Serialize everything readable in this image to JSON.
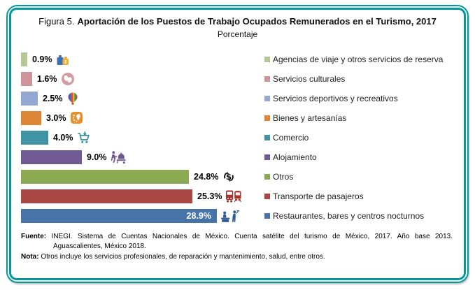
{
  "figure": {
    "label": "Figura 5.",
    "title": "Aportación de los Puestos de Trabajo Ocupados Remunerados en el Turismo, 2017",
    "subtitle": "Porcentaje"
  },
  "chart_data": {
    "type": "bar",
    "orientation": "horizontal",
    "unit": "percent",
    "title": "Aportación de los Puestos de Trabajo Ocupados Remunerados en el Turismo, 2017",
    "subtitle": "Porcentaje",
    "xlim": [
      0,
      30
    ],
    "grid": false,
    "legend_position": "right",
    "categories": [
      "Agencias de viaje y otros servicios de reserva",
      "Servicios culturales",
      "Servicios deportivos y recreativos",
      "Bienes y artesanías",
      "Comercio",
      "Alojamiento",
      "Otros",
      "Transporte de pasajeros",
      "Restaurantes, bares y centros nocturnos"
    ],
    "values": [
      0.9,
      1.6,
      2.5,
      3.0,
      4.0,
      9.0,
      24.8,
      25.3,
      28.9
    ],
    "value_labels": [
      "0.9%",
      "1.6%",
      "2.5%",
      "3.0%",
      "4.0%",
      "9.0%",
      "24.8%",
      "25.3%",
      "28.9%"
    ],
    "colors": [
      "#b6c794",
      "#cf939b",
      "#93a7d3",
      "#dd8636",
      "#4093a3",
      "#6f5a94",
      "#8caa52",
      "#a94744",
      "#4674a8"
    ],
    "icons": [
      "luggage-icon",
      "culture-masks-icon",
      "hot-air-balloon-icon",
      "handicrafts-icon",
      "shopping-cart-icon",
      "bellhop-cart-icon",
      "money-cycle-icon",
      "bus-train-icon",
      "restaurant-waiter-icon"
    ],
    "label_inside": [
      false,
      false,
      false,
      false,
      false,
      false,
      false,
      false,
      true
    ]
  },
  "footer": {
    "source_label": "Fuente:",
    "source_line1": "INEGI. Sistema de Cuentas Nacionales de México. Cuenta satélite del turismo de México, 2017. Año base 2013.",
    "source_line2": "Aguascalientes, México 2018.",
    "note_label": "Nota:",
    "note_text": "Otros incluye los servicios profesionales, de reparación y mantenimiento, salud, entre otros."
  },
  "theme": {
    "border_color": "#009a9e",
    "text_color": "#111111"
  }
}
